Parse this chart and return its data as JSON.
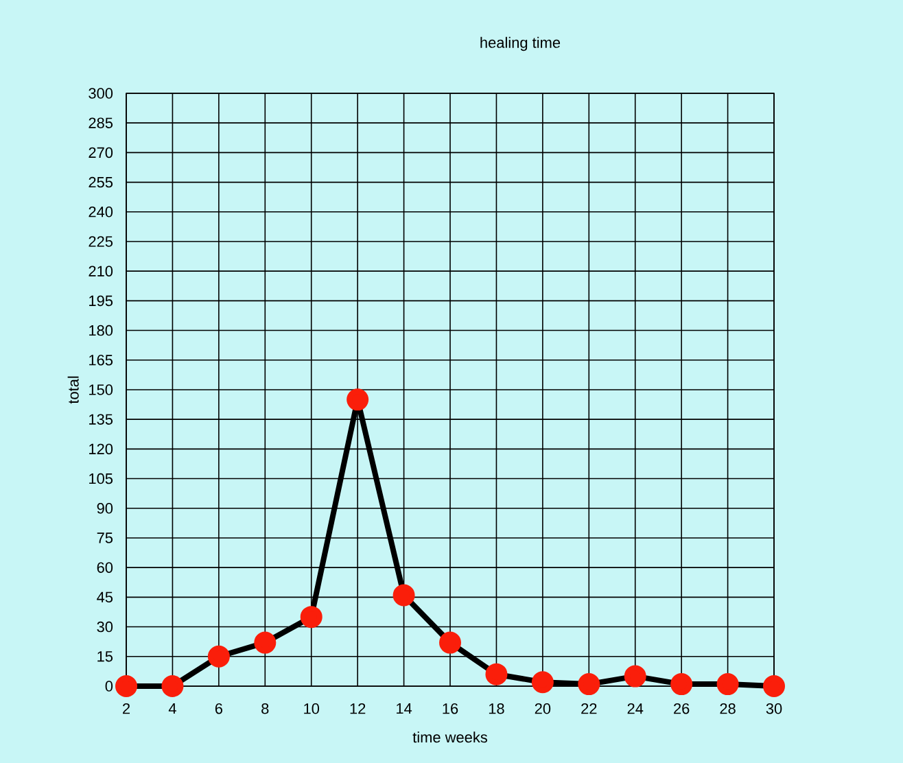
{
  "chart_data": {
    "type": "line",
    "title": "healing time",
    "xlabel": "time weeks",
    "ylabel": "total",
    "x": [
      2,
      4,
      6,
      8,
      10,
      12,
      14,
      16,
      18,
      20,
      22,
      24,
      26,
      28,
      30
    ],
    "series": [
      {
        "color": "#000000",
        "values": [
          0,
          0,
          15,
          22,
          35,
          145,
          46,
          22,
          6,
          2,
          1,
          5,
          1,
          1,
          0
        ]
      }
    ],
    "xlim": [
      2,
      30
    ],
    "xticks": [
      2,
      4,
      6,
      8,
      10,
      12,
      14,
      16,
      18,
      20,
      22,
      24,
      26,
      28,
      30
    ],
    "ylim": [
      0,
      300
    ],
    "yticks": [
      0,
      15,
      30,
      45,
      60,
      75,
      90,
      105,
      120,
      135,
      150,
      165,
      180,
      195,
      210,
      225,
      240,
      255,
      270,
      285,
      300
    ],
    "grid": true,
    "marker": "circle",
    "line_style": "solid"
  }
}
